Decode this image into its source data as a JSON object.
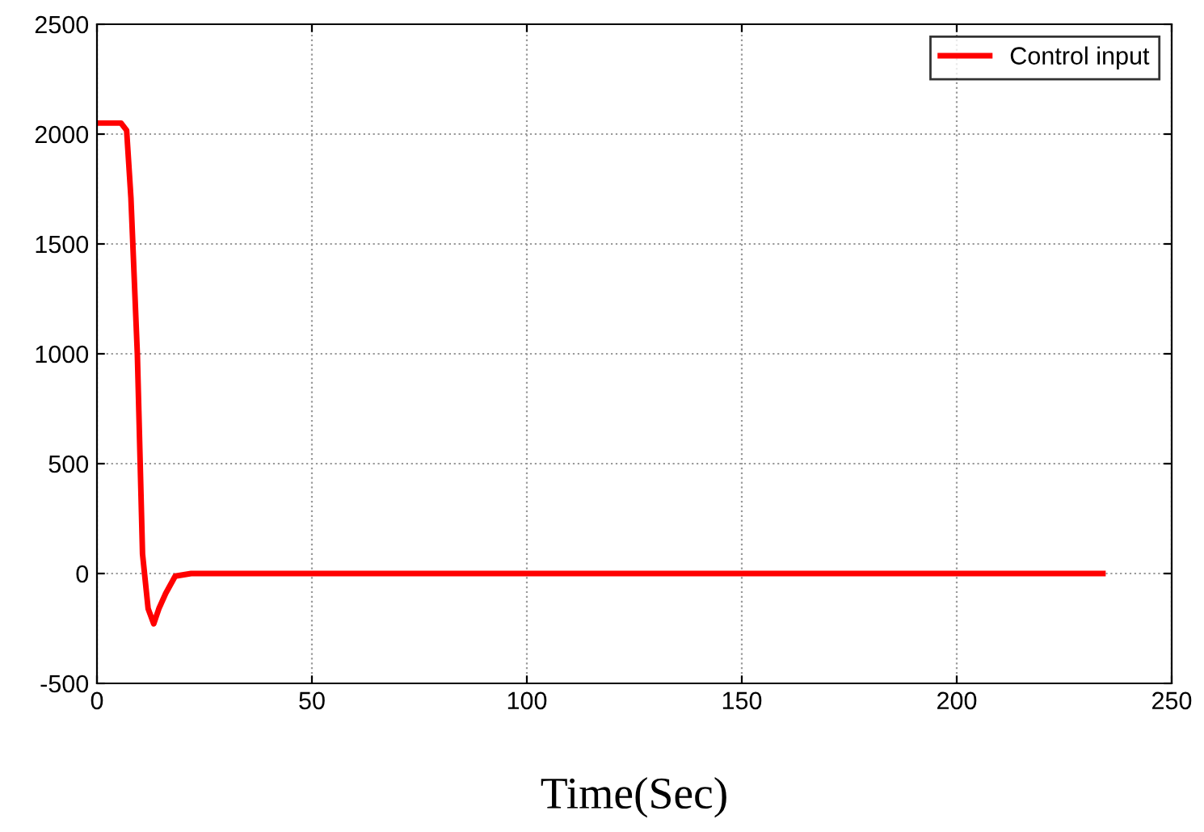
{
  "chart_data": {
    "type": "line",
    "xlabel": "Time(Sec)",
    "xlim": [
      0,
      250
    ],
    "xticks": [
      0,
      50,
      100,
      150,
      200,
      250
    ],
    "ylim": [
      -500,
      2500
    ],
    "yticks": [
      -500,
      0,
      500,
      1000,
      1500,
      2000,
      2500
    ],
    "grid": true,
    "legend": "top right",
    "series": [
      {
        "name": "Control input",
        "color": "#ff0000",
        "x": [
          0,
          5.6,
          6.9,
          7.9,
          9.4,
          10.6,
          11.9,
          13.2,
          14.4,
          16,
          18.2,
          21.9,
          234
        ],
        "values": [
          2050,
          2050,
          2017,
          1710,
          996,
          89,
          -160,
          -229,
          -160,
          -90,
          -12,
          0,
          0
        ]
      }
    ]
  }
}
